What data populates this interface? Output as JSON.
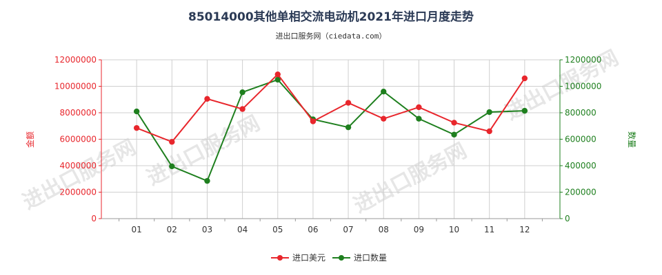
{
  "chart_data": {
    "type": "line",
    "title": "85014000其他单相交流电动机2021年进口月度走势",
    "subtitle": "进出口服务网（ciedata.com）",
    "categories": [
      "01",
      "02",
      "03",
      "04",
      "05",
      "06",
      "07",
      "08",
      "09",
      "10",
      "11",
      "12"
    ],
    "series": [
      {
        "name": "进口美元",
        "axis": "left",
        "color": "#e8262c",
        "values": [
          6850000,
          5800000,
          9050000,
          8280000,
          10900000,
          7350000,
          8750000,
          7550000,
          8420000,
          7250000,
          6600000,
          10600000
        ]
      },
      {
        "name": "进口数量",
        "axis": "right",
        "color": "#1e7f1e",
        "values": [
          810000,
          395000,
          285000,
          955000,
          1050000,
          750000,
          690000,
          960000,
          755000,
          635000,
          805000,
          815000
        ]
      }
    ],
    "ylabel_left": "金额",
    "ylabel_right": "数量",
    "ylim_left": [
      0,
      12000000
    ],
    "ylim_right": [
      0,
      1200000
    ],
    "yticks_left": [
      "0",
      "2000000",
      "4000000",
      "6000000",
      "8000000",
      "10000000",
      "12000000"
    ],
    "yticks_right": [
      "0",
      "200000",
      "400000",
      "600000",
      "800000",
      "1000000",
      "1200000"
    ],
    "grid": true,
    "legend_position": "bottom-center"
  }
}
